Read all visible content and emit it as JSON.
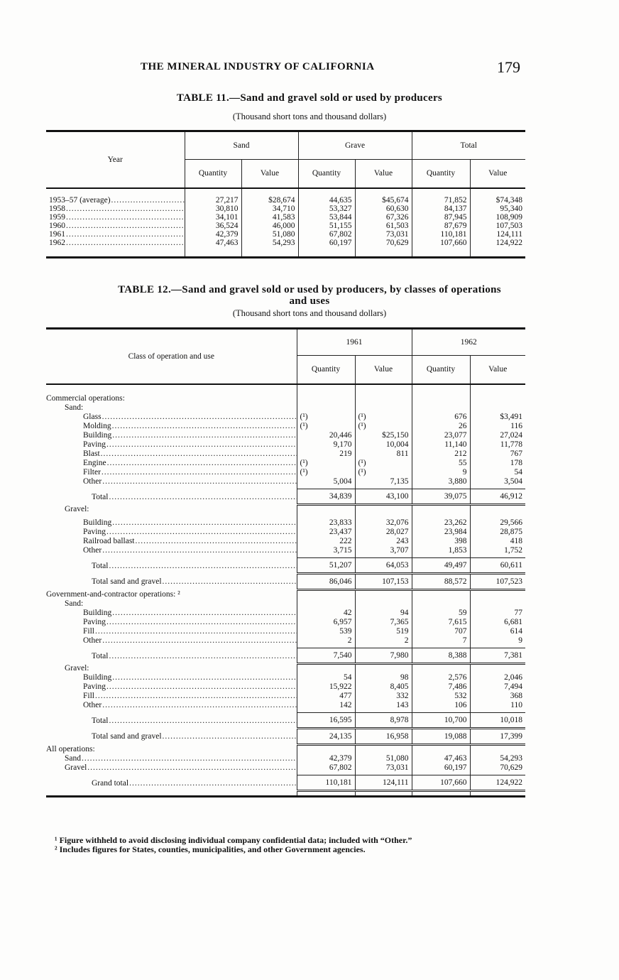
{
  "header": {
    "running_title": "THE MINERAL INDUSTRY OF CALIFORNIA",
    "page_number": "179"
  },
  "table11": {
    "title": "TABLE 11.—Sand and gravel sold or used by producers",
    "subtitle": "(Thousand short tons and thousand dollars)",
    "year_header": "Year",
    "groups": [
      "Sand",
      "Grave",
      "Total"
    ],
    "subcols": [
      "Quantity",
      "Value",
      "Quantity",
      "Value",
      "Quantity",
      "Value"
    ],
    "rows": [
      {
        "label": "1953–57 (average)",
        "values": [
          "27,217",
          "$28,674",
          "44,635",
          "$45,674",
          "71,852",
          "$74,348"
        ]
      },
      {
        "label": "1958",
        "values": [
          "30,810",
          "34,710",
          "53,327",
          "60,630",
          "84,137",
          "95,340"
        ]
      },
      {
        "label": "1959",
        "values": [
          "34,101",
          "41,583",
          "53,844",
          "67,326",
          "87,945",
          "108,909"
        ]
      },
      {
        "label": "1960",
        "values": [
          "36,524",
          "46,000",
          "51,155",
          "61,503",
          "87,679",
          "107,503"
        ]
      },
      {
        "label": "1961",
        "values": [
          "42,379",
          "51,080",
          "67,802",
          "73,031",
          "110,181",
          "124,111"
        ]
      },
      {
        "label": "1962",
        "values": [
          "47,463",
          "54,293",
          "60,197",
          "70,629",
          "107,660",
          "124,922"
        ]
      }
    ]
  },
  "table12": {
    "title_line1": "TABLE 12.—Sand and gravel sold or used by producers, by classes of operations",
    "title_line2": "and uses",
    "subtitle": "(Thousand short tons and thousand dollars)",
    "class_header": "Class of operation and use",
    "years": [
      "1961",
      "1962"
    ],
    "subcols": [
      "Quantity",
      "Value",
      "Quantity",
      "Value"
    ],
    "rows": [
      {
        "kind": "gap",
        "h": 14
      },
      {
        "kind": "head",
        "label": "Commercial operations:",
        "indent": 0
      },
      {
        "kind": "head",
        "label": "Sand:",
        "indent": 1
      },
      {
        "kind": "data",
        "label": "Glass",
        "indent": 2,
        "values": [
          "(¹)",
          "(¹)",
          "676",
          "$3,491"
        ]
      },
      {
        "kind": "data",
        "label": "Molding",
        "indent": 2,
        "values": [
          "(¹)",
          "(¹)",
          "26",
          "116"
        ]
      },
      {
        "kind": "data",
        "label": "Building",
        "indent": 2,
        "values": [
          "20,446",
          "$25,150",
          "23,077",
          "27,024"
        ]
      },
      {
        "kind": "data",
        "label": "Paving",
        "indent": 2,
        "values": [
          "9,170",
          "10,004",
          "11,140",
          "11,778"
        ]
      },
      {
        "kind": "data",
        "label": "Blast",
        "indent": 2,
        "values": [
          "219",
          "811",
          "212",
          "767"
        ]
      },
      {
        "kind": "data",
        "label": "Engine",
        "indent": 2,
        "values": [
          "(¹)",
          "(¹)",
          "55",
          "178"
        ]
      },
      {
        "kind": "data",
        "label": "Filter",
        "indent": 2,
        "values": [
          "(¹)",
          "(¹)",
          "9",
          "54"
        ]
      },
      {
        "kind": "data",
        "label": "Other",
        "indent": 2,
        "values": [
          "5,004",
          "7,135",
          "3,880",
          "3,504"
        ]
      },
      {
        "kind": "gap",
        "h": 4
      },
      {
        "kind": "total",
        "label": "Total",
        "indent": 3,
        "values": [
          "34,839",
          "43,100",
          "39,075",
          "46,912"
        ]
      },
      {
        "kind": "head",
        "label": "Gravel:",
        "indent": 1
      },
      {
        "kind": "gap",
        "h": 6
      },
      {
        "kind": "data",
        "label": "Building",
        "indent": 2,
        "values": [
          "23,833",
          "32,076",
          "23,262",
          "29,566"
        ]
      },
      {
        "kind": "data",
        "label": "Paving",
        "indent": 2,
        "values": [
          "23,437",
          "28,027",
          "23,984",
          "28,875"
        ]
      },
      {
        "kind": "data",
        "label": "Railroad ballast",
        "indent": 2,
        "values": [
          "222",
          "243",
          "398",
          "418"
        ]
      },
      {
        "kind": "data",
        "label": "Other",
        "indent": 2,
        "values": [
          "3,715",
          "3,707",
          "1,853",
          "1,752"
        ]
      },
      {
        "kind": "gap",
        "h": 4
      },
      {
        "kind": "total",
        "label": "Total",
        "indent": 3,
        "values": [
          "51,207",
          "64,053",
          "49,497",
          "60,611"
        ]
      },
      {
        "kind": "total",
        "label": "Total sand and gravel",
        "indent": 3,
        "values": [
          "86,046",
          "107,153",
          "88,572",
          "107,523"
        ]
      },
      {
        "kind": "head",
        "label": "Government-and-contractor operations: ²",
        "indent": 0
      },
      {
        "kind": "head",
        "label": "Sand:",
        "indent": 1
      },
      {
        "kind": "data",
        "label": "Building",
        "indent": 2,
        "values": [
          "42",
          "94",
          "59",
          "77"
        ]
      },
      {
        "kind": "data",
        "label": "Paving",
        "indent": 2,
        "values": [
          "6,957",
          "7,365",
          "7,615",
          "6,681"
        ]
      },
      {
        "kind": "data",
        "label": "Fill",
        "indent": 2,
        "values": [
          "539",
          "519",
          "707",
          "614"
        ]
      },
      {
        "kind": "data",
        "label": "Other",
        "indent": 2,
        "values": [
          "2",
          "2",
          "7",
          "9"
        ]
      },
      {
        "kind": "gap",
        "h": 4
      },
      {
        "kind": "total",
        "label": "Total",
        "indent": 3,
        "values": [
          "7,540",
          "7,980",
          "8,388",
          "7,381"
        ]
      },
      {
        "kind": "head",
        "label": "Gravel:",
        "indent": 1
      },
      {
        "kind": "data",
        "label": "Building",
        "indent": 2,
        "values": [
          "54",
          "98",
          "2,576",
          "2,046"
        ]
      },
      {
        "kind": "data",
        "label": "Paving",
        "indent": 2,
        "values": [
          "15,922",
          "8,405",
          "7,486",
          "7,494"
        ]
      },
      {
        "kind": "data",
        "label": "Fill",
        "indent": 2,
        "values": [
          "477",
          "332",
          "532",
          "368"
        ]
      },
      {
        "kind": "data",
        "label": "Other",
        "indent": 2,
        "values": [
          "142",
          "143",
          "106",
          "110"
        ]
      },
      {
        "kind": "gap",
        "h": 4
      },
      {
        "kind": "total",
        "label": "Total",
        "indent": 3,
        "values": [
          "16,595",
          "8,978",
          "10,700",
          "10,018"
        ]
      },
      {
        "kind": "total",
        "label": "Total sand and gravel",
        "indent": 3,
        "values": [
          "24,135",
          "16,958",
          "19,088",
          "17,399"
        ]
      },
      {
        "kind": "head",
        "label": "All operations:",
        "indent": 0
      },
      {
        "kind": "data",
        "label": "Sand",
        "indent": 1,
        "values": [
          "42,379",
          "51,080",
          "47,463",
          "54,293"
        ]
      },
      {
        "kind": "data",
        "label": "Gravel",
        "indent": 1,
        "values": [
          "67,802",
          "73,031",
          "60,197",
          "70,629"
        ]
      },
      {
        "kind": "gap",
        "h": 4
      },
      {
        "kind": "total",
        "label": "Grand total",
        "indent": 3,
        "values": [
          "110,181",
          "124,111",
          "107,660",
          "124,922"
        ]
      },
      {
        "kind": "gap",
        "h": 8
      }
    ]
  },
  "footnotes": [
    "¹ Figure withheld to avoid disclosing individual company confidential data; included with “Other.”",
    "² Includes figures for States, counties, municipalities, and other Government agencies."
  ]
}
